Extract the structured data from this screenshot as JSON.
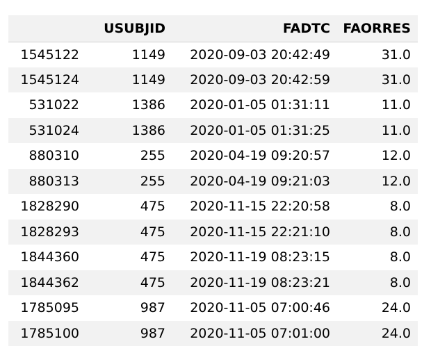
{
  "table": {
    "columns": [
      "",
      "USUBJID",
      "FADTC",
      "FAORRES"
    ],
    "rows": [
      {
        "index": "1545122",
        "usubjid": "1149",
        "fadtc": "2020-09-03 20:42:49",
        "faorres": "31.0"
      },
      {
        "index": "1545124",
        "usubjid": "1149",
        "fadtc": "2020-09-03 20:42:59",
        "faorres": "31.0"
      },
      {
        "index": "531022",
        "usubjid": "1386",
        "fadtc": "2020-01-05 01:31:11",
        "faorres": "11.0"
      },
      {
        "index": "531024",
        "usubjid": "1386",
        "fadtc": "2020-01-05 01:31:25",
        "faorres": "11.0"
      },
      {
        "index": "880310",
        "usubjid": "255",
        "fadtc": "2020-04-19 09:20:57",
        "faorres": "12.0"
      },
      {
        "index": "880313",
        "usubjid": "255",
        "fadtc": "2020-04-19 09:21:03",
        "faorres": "12.0"
      },
      {
        "index": "1828290",
        "usubjid": "475",
        "fadtc": "2020-11-15 22:20:58",
        "faorres": "8.0"
      },
      {
        "index": "1828293",
        "usubjid": "475",
        "fadtc": "2020-11-15 22:21:10",
        "faorres": "8.0"
      },
      {
        "index": "1844360",
        "usubjid": "475",
        "fadtc": "2020-11-19 08:23:15",
        "faorres": "8.0"
      },
      {
        "index": "1844362",
        "usubjid": "475",
        "fadtc": "2020-11-19 08:23:21",
        "faorres": "8.0"
      },
      {
        "index": "1785095",
        "usubjid": "987",
        "fadtc": "2020-11-05 07:00:46",
        "faorres": "24.0"
      },
      {
        "index": "1785100",
        "usubjid": "987",
        "fadtc": "2020-11-05 07:01:00",
        "faorres": "24.0"
      }
    ]
  }
}
